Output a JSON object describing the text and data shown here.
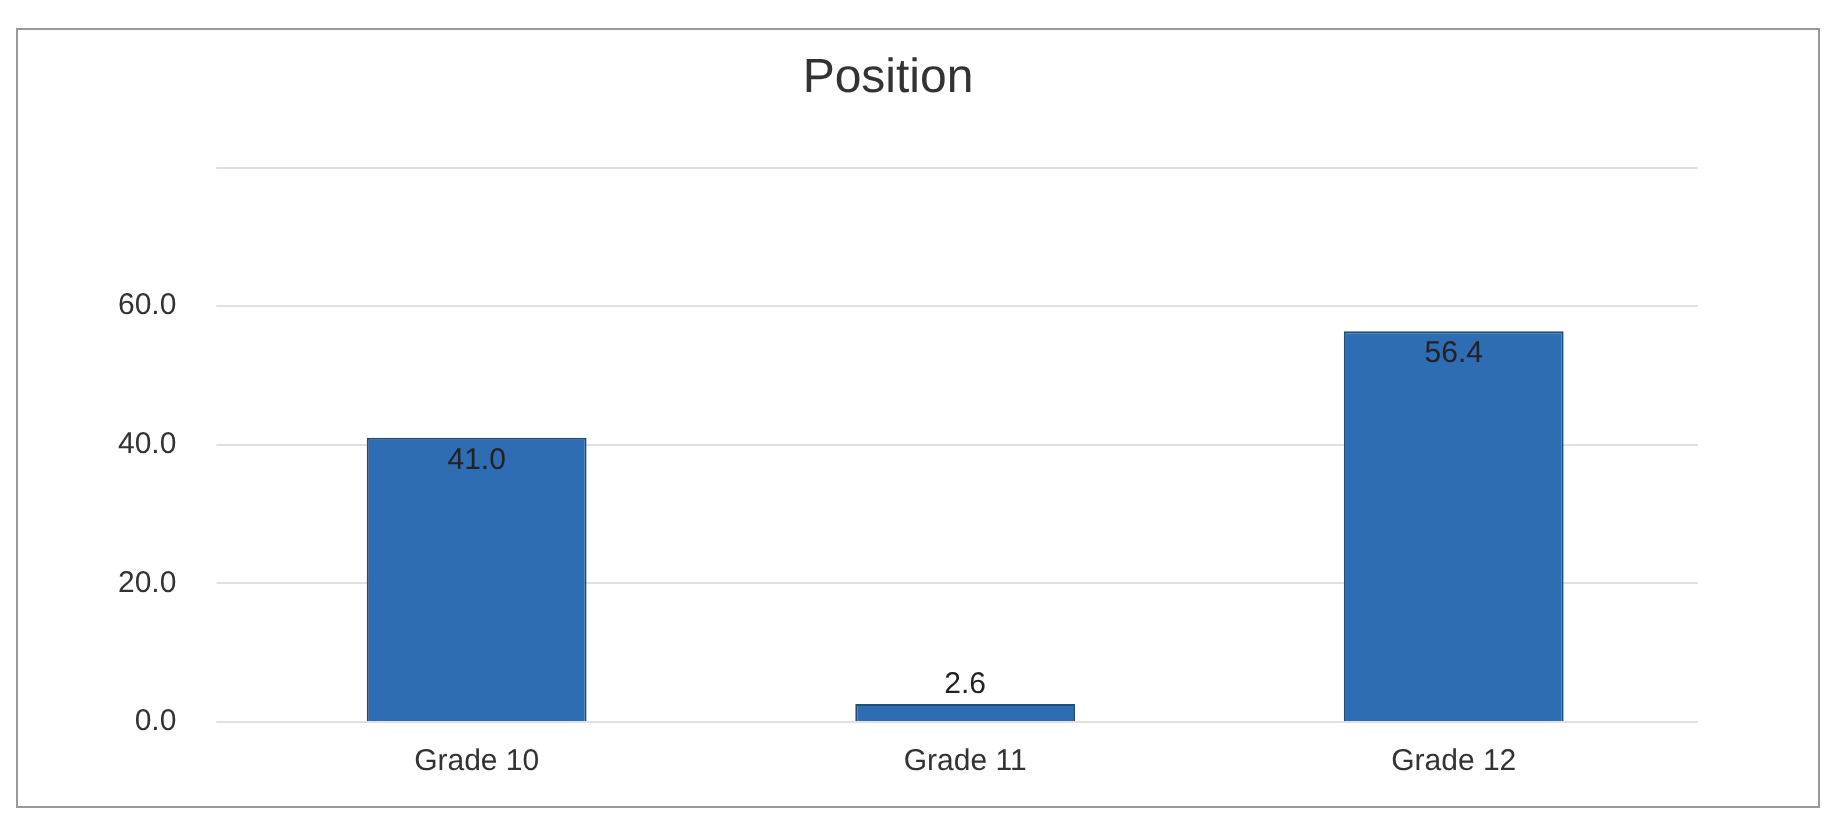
{
  "chart_data": {
    "type": "bar",
    "title": "Position",
    "categories": [
      "Grade 10",
      "Grade 11",
      "Grade 12"
    ],
    "values": [
      41.0,
      2.6,
      56.4
    ],
    "color": "#2e6db4",
    "value_labels": [
      "41.0",
      "2.6",
      "56.4"
    ],
    "ylim": [
      0,
      80
    ],
    "yticks": [
      {
        "value": 0,
        "label": "0.0"
      },
      {
        "value": 20,
        "label": "20.0"
      },
      {
        "value": 40,
        "label": "40.0"
      },
      {
        "value": 60,
        "label": "60.0"
      },
      {
        "value": 80,
        "label": null
      }
    ],
    "grid": "y"
  }
}
